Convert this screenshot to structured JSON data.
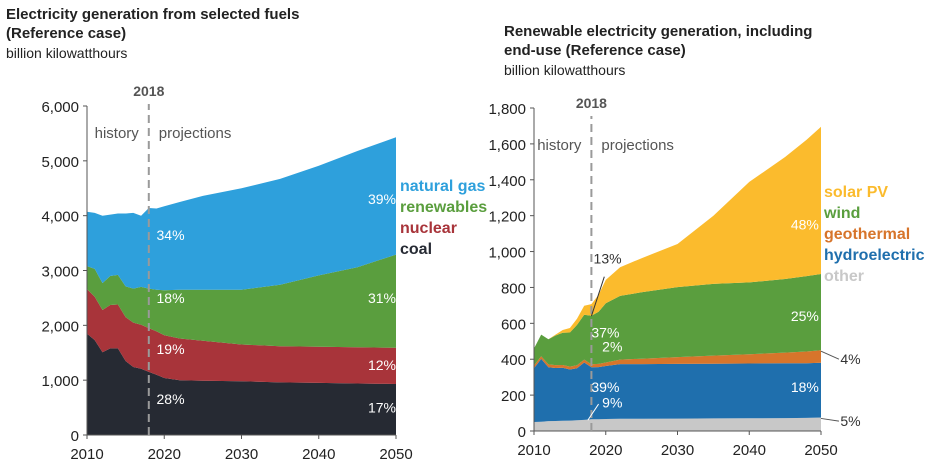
{
  "chart_data": [
    {
      "type": "area",
      "stacked": true,
      "title_line1": "Electricity generation from selected fuels",
      "title_line2": "(Reference case)",
      "units": "billion kilowatthours",
      "ylim": [
        0,
        6000
      ],
      "xlim": [
        2010,
        2050
      ],
      "y_ticks": [
        "0",
        "1,000",
        "2,000",
        "3,000",
        "4,000",
        "5,000",
        "6,000"
      ],
      "x_ticks": [
        "2010",
        "2020",
        "2030",
        "2040",
        "2050"
      ],
      "divider_year": 2018,
      "divider_label": "2018",
      "history_label": "history",
      "projections_label": "projections",
      "x": [
        2010,
        2011,
        2012,
        2013,
        2014,
        2015,
        2016,
        2017,
        2018,
        2019,
        2020,
        2022,
        2025,
        2030,
        2035,
        2040,
        2045,
        2050
      ],
      "series": [
        {
          "name": "coal",
          "color": "#262a33",
          "values": [
            1850,
            1730,
            1510,
            1580,
            1580,
            1350,
            1240,
            1210,
            1150,
            1100,
            1040,
            1000,
            990,
            980,
            960,
            950,
            940,
            930
          ]
        },
        {
          "name": "nuclear",
          "color": "#a8343a",
          "values": [
            810,
            790,
            770,
            790,
            800,
            800,
            810,
            800,
            800,
            790,
            780,
            760,
            730,
            670,
            660,
            660,
            660,
            660
          ]
        },
        {
          "name": "renewables",
          "color": "#5a9e3e",
          "values": [
            420,
            510,
            490,
            530,
            540,
            560,
            620,
            690,
            720,
            760,
            820,
            890,
            930,
            1000,
            1120,
            1300,
            1460,
            1700
          ]
        },
        {
          "name": "natural gas",
          "color": "#2ea0dc",
          "values": [
            990,
            1020,
            1230,
            1120,
            1120,
            1330,
            1380,
            1300,
            1470,
            1480,
            1530,
            1600,
            1710,
            1850,
            1930,
            2000,
            2120,
            2140
          ]
        }
      ],
      "data_labels": [
        "39%",
        "34%",
        "18%",
        "31%",
        "19%",
        "12%",
        "28%",
        "17%"
      ],
      "legend_colors": [
        "#2ea0dc",
        "#5a9e3e",
        "#a8343a",
        "#262a33"
      ]
    },
    {
      "type": "area",
      "stacked": true,
      "title_line1": "Renewable electricity generation, including",
      "title_line2": "end-use (Reference case)",
      "units": "billion kilowatthours",
      "ylim": [
        0,
        1800
      ],
      "xlim": [
        2010,
        2050
      ],
      "y_ticks": [
        "0",
        "200",
        "400",
        "600",
        "800",
        "1,000",
        "1,200",
        "1,400",
        "1,600",
        "1,800"
      ],
      "x_ticks": [
        "2010",
        "2020",
        "2030",
        "2040",
        "2050"
      ],
      "divider_year": 2018,
      "divider_label": "2018",
      "history_label": "history",
      "projections_label": "projections",
      "x": [
        2010,
        2011,
        2012,
        2013,
        2014,
        2015,
        2016,
        2017,
        2018,
        2019,
        2020,
        2022,
        2025,
        2030,
        2035,
        2040,
        2045,
        2048,
        2050
      ],
      "series": [
        {
          "name": "other",
          "color": "#c8c8c8",
          "values": [
            50,
            52,
            55,
            56,
            57,
            58,
            60,
            62,
            65,
            66,
            67,
            68,
            68,
            69,
            70,
            71,
            72,
            73,
            75
          ]
        },
        {
          "name": "hydroelectric",
          "color": "#1f6fad",
          "values": [
            300,
            350,
            300,
            295,
            295,
            285,
            290,
            320,
            290,
            290,
            295,
            305,
            305,
            305,
            305,
            305,
            305,
            305,
            305
          ]
        },
        {
          "name": "geothermal",
          "color": "#d7752b",
          "values": [
            15,
            15,
            16,
            16,
            16,
            16,
            16,
            16,
            17,
            18,
            20,
            25,
            30,
            38,
            45,
            52,
            60,
            65,
            70
          ]
        },
        {
          "name": "wind",
          "color": "#5a9e3e",
          "values": [
            95,
            120,
            140,
            165,
            180,
            190,
            225,
            250,
            270,
            290,
            330,
            355,
            370,
            390,
            400,
            400,
            410,
            420,
            425
          ]
        },
        {
          "name": "solar PV",
          "color": "#fbbb2d",
          "values": [
            0,
            0,
            0,
            5,
            15,
            25,
            35,
            50,
            65,
            95,
            130,
            160,
            190,
            240,
            380,
            560,
            680,
            760,
            820
          ]
        }
      ],
      "data_labels": [
        "13%",
        "48%",
        "37%",
        "25%",
        "2%",
        "4%",
        "39%",
        "18%",
        "9%",
        "5%"
      ],
      "legend_colors": [
        "#fbbb2d",
        "#5a9e3e",
        "#d7752b",
        "#1f6fad",
        "#c8c8c8"
      ]
    }
  ]
}
